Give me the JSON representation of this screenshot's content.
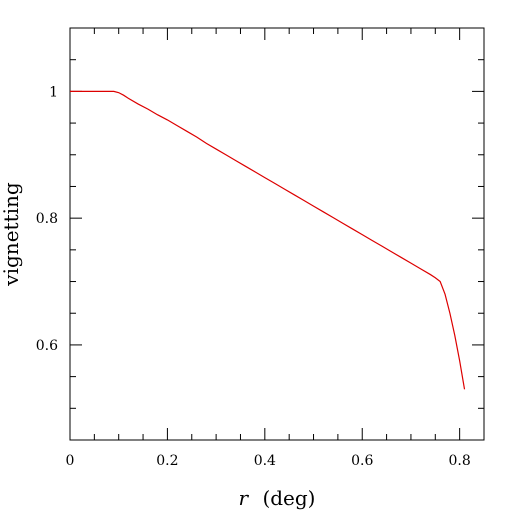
{
  "chart_data": {
    "type": "line",
    "title": "",
    "xlabel_symbol": "r",
    "xlabel_unit": "(deg)",
    "ylabel": "vignetting",
    "xlim": [
      0,
      0.85
    ],
    "ylim": [
      0.45,
      1.1
    ],
    "grid": false,
    "x_major_ticks": [
      0,
      0.2,
      0.4,
      0.6,
      0.8
    ],
    "x_tick_labels": [
      "0",
      "0.2",
      "0.4",
      "0.6",
      "0.8"
    ],
    "x_minor_step": 0.05,
    "y_major_ticks": [
      0.6,
      0.8,
      1.0
    ],
    "y_tick_labels": [
      "0.6",
      "0.8",
      "1"
    ],
    "y_minor_step": 0.05,
    "series": [
      {
        "color": "#dd0000",
        "x": [
          0.0,
          0.02,
          0.04,
          0.06,
          0.08,
          0.09,
          0.1,
          0.11,
          0.12,
          0.14,
          0.16,
          0.18,
          0.2,
          0.22,
          0.24,
          0.26,
          0.28,
          0.3,
          0.32,
          0.34,
          0.36,
          0.38,
          0.4,
          0.42,
          0.44,
          0.46,
          0.48,
          0.5,
          0.52,
          0.54,
          0.56,
          0.58,
          0.6,
          0.62,
          0.64,
          0.66,
          0.68,
          0.7,
          0.72,
          0.74,
          0.75,
          0.76,
          0.77,
          0.78,
          0.79,
          0.8,
          0.81
        ],
        "y": [
          1.0,
          1.0,
          1.0,
          1.0,
          1.0,
          1.0,
          0.998,
          0.994,
          0.989,
          0.98,
          0.972,
          0.963,
          0.955,
          0.946,
          0.937,
          0.928,
          0.918,
          0.909,
          0.9,
          0.891,
          0.882,
          0.873,
          0.864,
          0.855,
          0.846,
          0.837,
          0.828,
          0.819,
          0.81,
          0.801,
          0.792,
          0.783,
          0.774,
          0.765,
          0.756,
          0.747,
          0.738,
          0.729,
          0.72,
          0.711,
          0.706,
          0.7,
          0.68,
          0.65,
          0.615,
          0.575,
          0.53
        ]
      }
    ]
  }
}
